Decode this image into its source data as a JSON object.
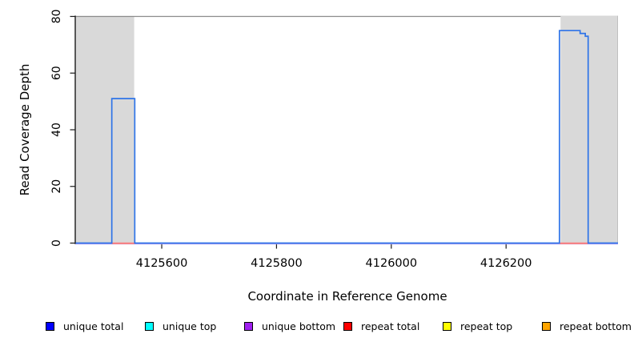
{
  "figure": {
    "background": "#ffffff",
    "ylabel": "Read Coverage Depth",
    "xlabel": "Coordinate in Reference Genome"
  },
  "chart_data": {
    "type": "line",
    "title": "",
    "xlabel": "Coordinate in Reference Genome",
    "ylabel": "Read Coverage Depth",
    "xlim": [
      4125450,
      4126395
    ],
    "ylim": [
      0,
      80
    ],
    "x_ticks": [
      4125600,
      4125800,
      4126000,
      4126200
    ],
    "x_tick_labels": [
      "4125600",
      "4125800",
      "4126000",
      "4126200"
    ],
    "y_ticks": [
      0,
      20,
      40,
      60,
      80
    ],
    "y_tick_labels": [
      "0",
      "20",
      "40",
      "60",
      "80"
    ],
    "grid": false,
    "legend_position": "bottom",
    "shaded_regions": [
      {
        "name": "repeat-region-left",
        "x0": 4125450,
        "x1": 4125552
      },
      {
        "name": "repeat-region-right",
        "x0": 4126295,
        "x1": 4126395
      }
    ],
    "red_baseline_spans": [
      [
        4125513,
        4125553
      ],
      [
        4126293,
        4126343
      ]
    ],
    "series": [
      {
        "name": "unique total",
        "color": "#0000ff",
        "draw_color": "#2f74e8",
        "steps": [
          [
            4125450,
            0
          ],
          [
            4125513,
            51
          ],
          [
            4125553,
            0
          ],
          [
            4126293,
            75
          ],
          [
            4126329,
            74
          ],
          [
            4126338,
            73
          ],
          [
            4126343,
            0
          ],
          [
            4126395,
            0
          ]
        ]
      },
      {
        "name": "unique top",
        "color": "#00ffff",
        "draw_color": "#00ffff",
        "steps": [
          [
            4125450,
            0
          ],
          [
            4126395,
            0
          ]
        ]
      },
      {
        "name": "unique bottom",
        "color": "#a020f0",
        "draw_color": "#b49cf2",
        "steps": [
          [
            4125450,
            0
          ],
          [
            4126395,
            0
          ]
        ]
      },
      {
        "name": "repeat total",
        "color": "#ff0000",
        "draw_color": "#f98080",
        "steps": [
          [
            4125450,
            0
          ],
          [
            4126395,
            0
          ]
        ]
      },
      {
        "name": "repeat top",
        "color": "#ffff00",
        "draw_color": "#ffff00",
        "steps": [
          [
            4125450,
            0
          ],
          [
            4126395,
            0
          ]
        ]
      },
      {
        "name": "repeat bottom",
        "color": "#ffa500",
        "draw_color": "#ffa500",
        "steps": [
          [
            4125450,
            0
          ],
          [
            4126395,
            0
          ]
        ]
      }
    ],
    "colors": {
      "region_fill": "#d9d9d9",
      "region_edge": "#bfbfbf",
      "coverage_line": "#2f74e8",
      "baseline_purple": "#b49cf2",
      "baseline_red": "#f98080",
      "axis": "#1a1a1a",
      "top_border": "#8c8c8c",
      "text": "#000000"
    }
  }
}
